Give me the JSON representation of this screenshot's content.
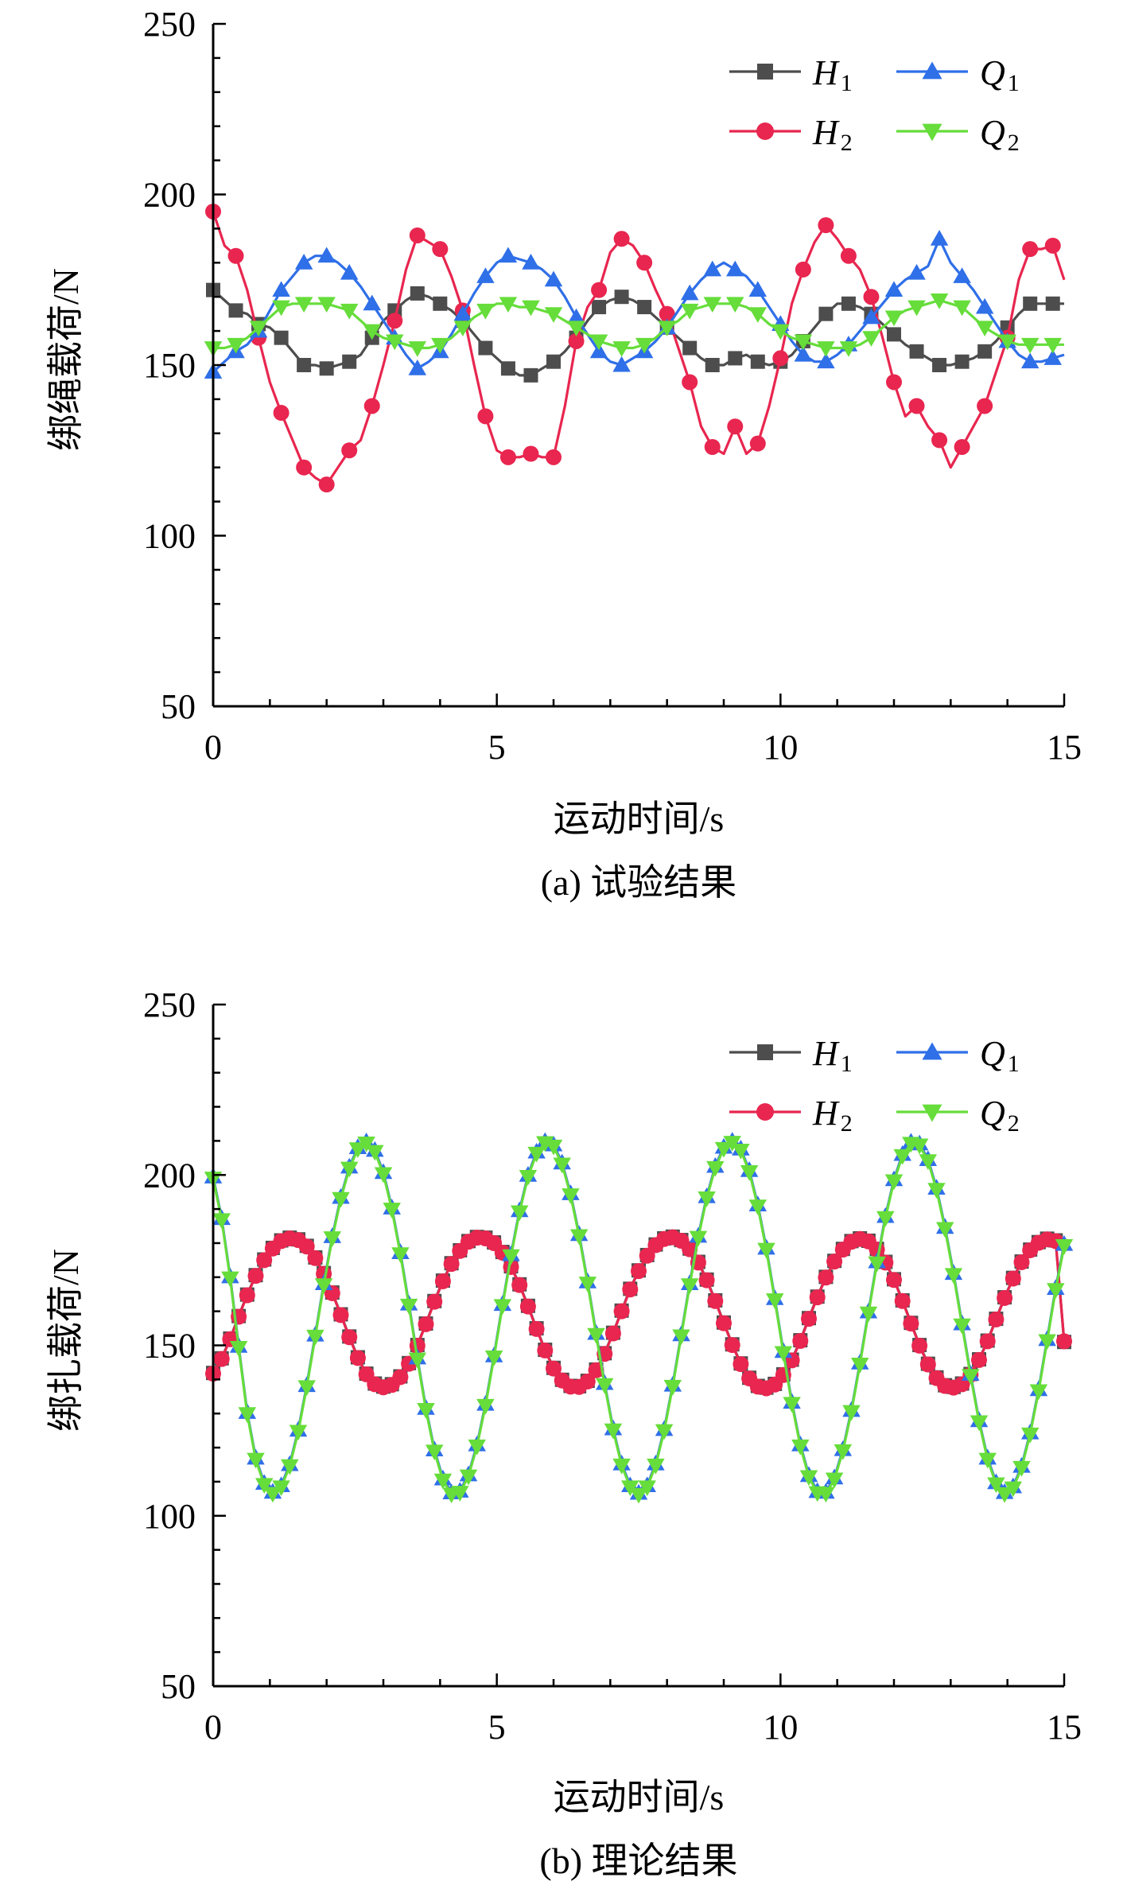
{
  "colors": {
    "H1": "#4d4d4d",
    "H2": "#e8264f",
    "Q1": "#2f6fe8",
    "Q2": "#66dd3a",
    "axis": "#000000"
  },
  "chart_data": [
    {
      "id": "panel-a",
      "type": "line",
      "caption": "(a) 试验结果",
      "xlabel": "运动时间/s",
      "ylabel": "绑绳载荷/N",
      "xlim": [
        0,
        15
      ],
      "ylim": [
        50,
        250
      ],
      "xticks": [
        "0",
        "5",
        "10",
        "15"
      ],
      "yticks": [
        "50",
        "100",
        "150",
        "200",
        "250"
      ],
      "grid": false,
      "legend_position": "top-right",
      "x": [
        0,
        0.2,
        0.4,
        0.6,
        0.8,
        1.0,
        1.2,
        1.4,
        1.6,
        1.8,
        2.0,
        2.2,
        2.4,
        2.6,
        2.8,
        3.0,
        3.2,
        3.4,
        3.6,
        3.8,
        4.0,
        4.2,
        4.4,
        4.6,
        4.8,
        5.0,
        5.2,
        5.4,
        5.6,
        5.8,
        6.0,
        6.2,
        6.4,
        6.6,
        6.8,
        7.0,
        7.2,
        7.4,
        7.6,
        7.8,
        8.0,
        8.2,
        8.4,
        8.6,
        8.8,
        9.0,
        9.2,
        9.4,
        9.6,
        9.8,
        10.0,
        10.2,
        10.4,
        10.6,
        10.8,
        11.0,
        11.2,
        11.4,
        11.6,
        11.8,
        12.0,
        12.2,
        12.4,
        12.6,
        12.8,
        13.0,
        13.2,
        13.4,
        13.6,
        13.8,
        14.0,
        14.2,
        14.4,
        14.6,
        14.8,
        15.0
      ],
      "series": [
        {
          "name": "H",
          "sub": "1",
          "marker": "square",
          "values": [
            172,
            169,
            166,
            165,
            162,
            161,
            158,
            154,
            150,
            150,
            149,
            150,
            151,
            153,
            158,
            163,
            166,
            169,
            171,
            170,
            168,
            166,
            163,
            159,
            155,
            152,
            149,
            147,
            147,
            149,
            151,
            154,
            158,
            163,
            167,
            169,
            170,
            169,
            167,
            164,
            161,
            158,
            155,
            152,
            150,
            150,
            152,
            153,
            151,
            150,
            151,
            153,
            157,
            161,
            165,
            168,
            168,
            167,
            165,
            162,
            159,
            156,
            154,
            152,
            150,
            150,
            151,
            152,
            154,
            157,
            161,
            165,
            168,
            168,
            168,
            168
          ]
        },
        {
          "name": "H",
          "sub": "2",
          "marker": "circle",
          "values": [
            195,
            185,
            182,
            172,
            158,
            145,
            136,
            128,
            120,
            117,
            115,
            120,
            125,
            128,
            138,
            150,
            163,
            178,
            188,
            186,
            184,
            176,
            166,
            150,
            135,
            125,
            123,
            123,
            124,
            123,
            123,
            138,
            157,
            167,
            172,
            183,
            187,
            185,
            180,
            172,
            165,
            155,
            145,
            132,
            126,
            124,
            132,
            124,
            127,
            138,
            152,
            168,
            178,
            186,
            191,
            187,
            182,
            178,
            170,
            158,
            145,
            135,
            138,
            132,
            128,
            120,
            126,
            132,
            138,
            148,
            158,
            175,
            184,
            184,
            185,
            175
          ]
        },
        {
          "name": "Q",
          "sub": "1",
          "marker": "triangle-up",
          "values": [
            148,
            151,
            154,
            156,
            160,
            166,
            172,
            176,
            180,
            182,
            182,
            180,
            177,
            173,
            168,
            163,
            158,
            153,
            149,
            151,
            154,
            159,
            165,
            171,
            176,
            180,
            182,
            181,
            180,
            178,
            175,
            170,
            164,
            159,
            154,
            151,
            150,
            152,
            154,
            157,
            161,
            166,
            171,
            175,
            178,
            180,
            178,
            176,
            172,
            167,
            162,
            157,
            153,
            151,
            151,
            153,
            156,
            160,
            164,
            168,
            172,
            175,
            177,
            179,
            187,
            180,
            176,
            172,
            167,
            162,
            157,
            153,
            151,
            151,
            152,
            153
          ]
        },
        {
          "name": "Q",
          "sub": "2",
          "marker": "triangle-down",
          "values": [
            155,
            155,
            156,
            158,
            161,
            164,
            167,
            168,
            168,
            168,
            168,
            167,
            166,
            163,
            160,
            158,
            157,
            156,
            155,
            155,
            156,
            158,
            161,
            164,
            166,
            168,
            168,
            167,
            167,
            166,
            165,
            163,
            161,
            159,
            157,
            156,
            155,
            155,
            156,
            158,
            161,
            163,
            166,
            167,
            168,
            168,
            168,
            167,
            165,
            162,
            160,
            158,
            157,
            156,
            155,
            155,
            155,
            156,
            158,
            161,
            164,
            166,
            167,
            168,
            169,
            168,
            167,
            164,
            161,
            159,
            157,
            156,
            156,
            156,
            156,
            156
          ]
        }
      ]
    },
    {
      "id": "panel-b",
      "type": "line",
      "caption": "(b) 理论结果",
      "xlabel": "运动时间/s",
      "ylabel": "绑扎载荷/N",
      "xlim": [
        0,
        15
      ],
      "ylim": [
        50,
        250
      ],
      "xticks": [
        "0",
        "5",
        "10",
        "15"
      ],
      "yticks": [
        "50",
        "100",
        "150",
        "200",
        "250"
      ],
      "grid": false,
      "legend_position": "top-right",
      "x": [
        0,
        0.15,
        0.3,
        0.45,
        0.6,
        0.75,
        0.9,
        1.05,
        1.2,
        1.35,
        1.5,
        1.65,
        1.8,
        1.95,
        2.1,
        2.25,
        2.4,
        2.55,
        2.7,
        2.85,
        3.0,
        3.15,
        3.3,
        3.45,
        3.6,
        3.75,
        3.9,
        4.05,
        4.2,
        4.35,
        4.5,
        4.65,
        4.8,
        4.95,
        5.1,
        5.25,
        5.4,
        5.55,
        5.7,
        5.85,
        6.0,
        6.15,
        6.3,
        6.45,
        6.6,
        6.75,
        6.9,
        7.05,
        7.2,
        7.35,
        7.5,
        7.65,
        7.8,
        7.95,
        8.1,
        8.25,
        8.4,
        8.55,
        8.7,
        8.85,
        9.0,
        9.15,
        9.3,
        9.45,
        9.6,
        9.75,
        9.9,
        10.05,
        10.2,
        10.35,
        10.5,
        10.65,
        10.8,
        10.95,
        11.1,
        11.25,
        11.4,
        11.55,
        11.7,
        11.85,
        12.0,
        12.15,
        12.3,
        12.45,
        12.6,
        12.75,
        12.9,
        13.05,
        13.2,
        13.35,
        13.5,
        13.65,
        13.8,
        13.95,
        14.1,
        14.25,
        14.4,
        14.55,
        14.7,
        14.85,
        15.0
      ],
      "series": [
        {
          "name": "H",
          "sub": "1",
          "marker": "square",
          "values": [
            141.9,
            146.2,
            152.0,
            158.6,
            164.9,
            170.6,
            175.2,
            178.6,
            180.8,
            181.6,
            181.1,
            179.2,
            175.8,
            171.2,
            165.5,
            159.1,
            152.6,
            146.5,
            141.7,
            138.8,
            137.9,
            138.6,
            140.9,
            144.8,
            150.1,
            156.4,
            163.0,
            169.0,
            174.1,
            177.9,
            180.6,
            181.8,
            181.6,
            180.2,
            177.4,
            173.2,
            167.9,
            161.6,
            155.0,
            148.7,
            143.4,
            139.9,
            138.1,
            138.0,
            139.6,
            142.9,
            147.7,
            153.7,
            160.2,
            166.6,
            172.0,
            176.5,
            179.6,
            181.4,
            181.9,
            180.9,
            178.4,
            174.5,
            169.3,
            163.2,
            156.7,
            150.3,
            144.7,
            140.5,
            138.1,
            137.6,
            138.7,
            141.5,
            145.8,
            151.5,
            158.0,
            164.3,
            170.1,
            174.8,
            178.3,
            180.6,
            181.4,
            180.7,
            178.3,
            174.5,
            169.4,
            163.2,
            156.6,
            150.1,
            144.6,
            140.6,
            138.3,
            137.8,
            138.8,
            141.6,
            145.9,
            151.4,
            157.8,
            164.1,
            169.8,
            174.6,
            178.1,
            180.3,
            181.3,
            180.8,
            151.0
          ]
        },
        {
          "name": "H",
          "sub": "2",
          "marker": "circle",
          "values": [
            141.7,
            146.0,
            151.8,
            158.4,
            164.7,
            170.4,
            175.0,
            178.4,
            180.6,
            181.4,
            180.9,
            179.0,
            175.6,
            171.0,
            165.3,
            158.9,
            152.4,
            146.3,
            141.5,
            138.6,
            137.7,
            138.4,
            140.7,
            144.6,
            149.9,
            156.2,
            162.8,
            168.8,
            173.9,
            177.7,
            180.4,
            181.6,
            181.4,
            180.0,
            177.2,
            173.0,
            167.7,
            161.4,
            154.8,
            148.5,
            143.2,
            139.7,
            137.9,
            137.8,
            139.4,
            142.7,
            147.5,
            153.5,
            160.0,
            166.4,
            171.8,
            176.3,
            179.4,
            181.2,
            181.7,
            180.7,
            178.2,
            174.3,
            169.1,
            163.0,
            156.5,
            150.1,
            144.5,
            140.3,
            137.9,
            137.4,
            138.5,
            141.3,
            145.6,
            151.3,
            157.8,
            164.1,
            169.9,
            174.6,
            178.1,
            180.4,
            181.2,
            180.5,
            178.1,
            174.3,
            169.2,
            163.0,
            156.4,
            149.9,
            144.4,
            140.4,
            138.1,
            137.6,
            138.6,
            141.4,
            145.7,
            151.2,
            157.6,
            163.9,
            169.6,
            174.4,
            177.9,
            180.1,
            181.1,
            180.6,
            151.2
          ]
        },
        {
          "name": "Q",
          "sub": "1",
          "marker": "triangle-up",
          "values": [
            199.5,
            187.3,
            170.2,
            149.8,
            130.4,
            117.0,
            109.6,
            107.0,
            108.9,
            115.1,
            125.2,
            138.3,
            153.1,
            168.2,
            182.0,
            193.5,
            202.4,
            208.1,
            209.8,
            207.3,
            200.8,
            190.4,
            177.3,
            162.2,
            146.4,
            131.6,
            119.4,
            110.9,
            106.8,
            107.3,
            112.1,
            120.9,
            132.8,
            147.0,
            162.1,
            176.7,
            189.6,
            200.0,
            206.8,
            209.9,
            208.9,
            203.6,
            194.6,
            182.6,
            168.7,
            153.6,
            138.9,
            125.6,
            115.3,
            108.9,
            106.7,
            108.9,
            115.3,
            125.4,
            138.4,
            153.2,
            168.2,
            182.1,
            193.7,
            202.6,
            208.2,
            210.0,
            207.7,
            201.4,
            191.3,
            178.6,
            163.8,
            148.3,
            133.4,
            120.9,
            111.9,
            107.2,
            107.0,
            111.2,
            119.5,
            131.0,
            144.9,
            159.9,
            174.6,
            187.9,
            198.7,
            206.1,
            209.7,
            209.2,
            204.6,
            196.2,
            184.7,
            171.2,
            156.4,
            141.6,
            128.0,
            117.0,
            109.8,
            106.9,
            108.6,
            114.6,
            124.4,
            137.1,
            151.8,
            166.8,
            179.7
          ]
        },
        {
          "name": "Q",
          "sub": "2",
          "marker": "triangle-down",
          "values": [
            199.0,
            186.8,
            169.7,
            149.3,
            129.9,
            116.5,
            109.1,
            106.5,
            108.4,
            114.6,
            124.7,
            137.8,
            152.6,
            167.7,
            181.5,
            193.0,
            201.9,
            207.6,
            209.3,
            206.8,
            200.3,
            189.9,
            176.8,
            161.7,
            145.9,
            131.1,
            118.9,
            110.4,
            106.3,
            106.8,
            111.6,
            120.4,
            132.3,
            146.5,
            161.6,
            176.2,
            189.1,
            199.5,
            206.3,
            209.4,
            208.4,
            203.1,
            194.1,
            182.1,
            168.2,
            153.1,
            138.4,
            125.1,
            114.8,
            108.4,
            106.2,
            108.4,
            114.8,
            124.9,
            137.9,
            152.7,
            167.7,
            181.6,
            193.2,
            202.1,
            207.7,
            209.5,
            207.2,
            200.9,
            190.8,
            178.1,
            163.3,
            147.8,
            132.9,
            120.4,
            111.4,
            106.7,
            106.5,
            110.7,
            119.0,
            130.5,
            144.4,
            159.4,
            174.1,
            187.4,
            198.2,
            205.6,
            209.2,
            208.7,
            204.1,
            195.7,
            184.2,
            170.7,
            155.9,
            141.1,
            127.5,
            116.5,
            109.3,
            106.4,
            108.1,
            114.1,
            123.9,
            136.6,
            151.3,
            166.3,
            179.2
          ]
        }
      ]
    }
  ]
}
